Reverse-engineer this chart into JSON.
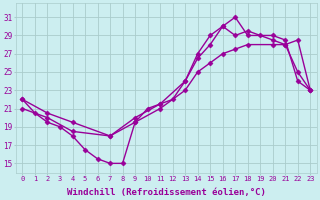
{
  "background_color": "#cceef0",
  "grid_color": "#aacccc",
  "line_color": "#990099",
  "marker": "D",
  "markersize": 2.5,
  "linewidth": 1.0,
  "xlabel": "Windchill (Refroidissement éolien,°C)",
  "xlabel_fontsize": 6.5,
  "xtick_labels": [
    "0",
    "1",
    "2",
    "3",
    "4",
    "5",
    "6",
    "7",
    "8",
    "9",
    "10",
    "11",
    "12",
    "13",
    "14",
    "15",
    "16",
    "17",
    "18",
    "19",
    "20",
    "21",
    "22",
    "23"
  ],
  "ytick_vals": [
    15,
    17,
    19,
    21,
    23,
    25,
    27,
    29,
    31
  ],
  "ytick_labels": [
    "15",
    "17",
    "19",
    "21",
    "23",
    "25",
    "27",
    "29",
    "31"
  ],
  "ylim": [
    14.0,
    32.5
  ],
  "xlim": [
    -0.5,
    23.5
  ],
  "line1_x": [
    0,
    1,
    2,
    3,
    4,
    5,
    6,
    7,
    8,
    9,
    10,
    11,
    12,
    13,
    14,
    15,
    16,
    17,
    18,
    19,
    20,
    21,
    22,
    23
  ],
  "line1_y": [
    22,
    20.5,
    19.5,
    19,
    18,
    16.5,
    15.5,
    15,
    15,
    19.5,
    21,
    21.5,
    22,
    24,
    26.5,
    28,
    30,
    31,
    29,
    29,
    29,
    28.5,
    24,
    23
  ],
  "line2_x": [
    0,
    2,
    4,
    7,
    9,
    11,
    13,
    14,
    15,
    16,
    17,
    18,
    20,
    21,
    22,
    23
  ],
  "line2_y": [
    22,
    20.5,
    19.5,
    18,
    20,
    21.5,
    24,
    27,
    29,
    30,
    29,
    29.5,
    28.5,
    28,
    25,
    23
  ],
  "line3_x": [
    0,
    2,
    4,
    7,
    9,
    11,
    13,
    14,
    15,
    16,
    17,
    18,
    20,
    21,
    22,
    23
  ],
  "line3_y": [
    21,
    20,
    18.5,
    18,
    19.5,
    21,
    23,
    25,
    26,
    27,
    27.5,
    28,
    28,
    28,
    28.5,
    23
  ]
}
